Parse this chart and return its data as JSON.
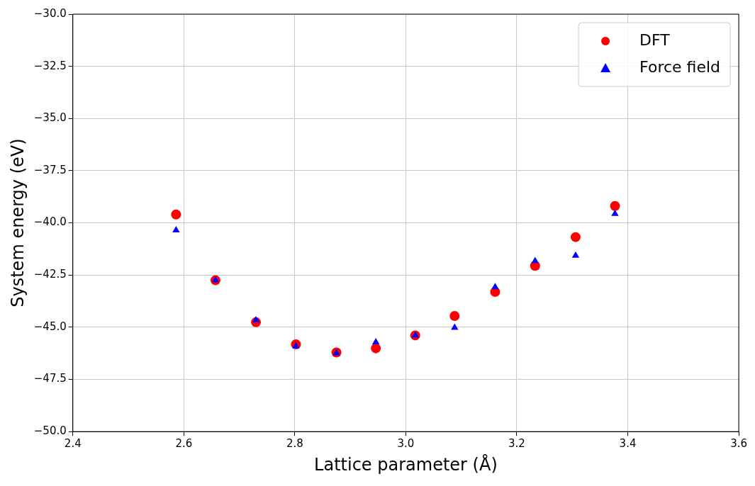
{
  "chart_data": {
    "type": "scatter",
    "xlabel": "Lattice parameter (Å)",
    "ylabel": "System energy (eV)",
    "xlim": [
      2.4,
      3.6
    ],
    "xticks": [
      {
        "value": 2.4,
        "label": "2.4"
      },
      {
        "value": 2.6,
        "label": "2.6"
      },
      {
        "value": 2.8,
        "label": "2.8"
      },
      {
        "value": 3.0,
        "label": "3.0"
      },
      {
        "value": 3.2,
        "label": "3.2"
      },
      {
        "value": 3.4,
        "label": "3.4"
      },
      {
        "value": 3.6,
        "label": "3.6"
      }
    ],
    "ylim": [
      -50,
      -30
    ],
    "yticks": [
      {
        "value": -50,
        "label": "−50.0"
      },
      {
        "value": -47.5,
        "label": "−47.5"
      },
      {
        "value": -45,
        "label": "−45.0"
      },
      {
        "value": -42.5,
        "label": "−42.5"
      },
      {
        "value": -40,
        "label": "−40.0"
      },
      {
        "value": -37.5,
        "label": "−37.5"
      },
      {
        "value": -35,
        "label": "−35.0"
      },
      {
        "value": -32.5,
        "label": "−32.5"
      },
      {
        "value": -30,
        "label": "−30.0"
      }
    ],
    "grid": true,
    "legend": "top right",
    "x": [
      2.586,
      2.657,
      2.73,
      2.802,
      2.875,
      2.946,
      3.017,
      3.088,
      3.161,
      3.233,
      3.306,
      3.377
    ],
    "series": [
      {
        "name": "DFT",
        "color": "#ff0000",
        "marker": "circle",
        "values": [
          -39.6,
          -42.75,
          -44.76,
          -45.82,
          -46.21,
          -46.01,
          -45.39,
          -44.46,
          -43.31,
          -42.06,
          -40.68,
          -39.19
        ]
      },
      {
        "name": "Force field",
        "color": "#0000ff",
        "marker": "triangle",
        "values": [
          -40.35,
          -42.75,
          -44.66,
          -45.91,
          -46.24,
          -45.72,
          -45.39,
          -45.02,
          -43.08,
          -41.83,
          -41.57,
          -39.56
        ]
      }
    ]
  }
}
